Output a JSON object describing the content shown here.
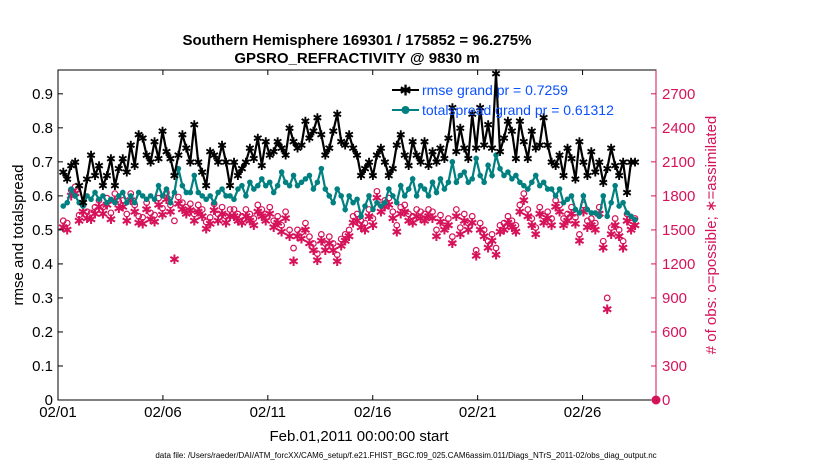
{
  "chart_data": {
    "type": "line",
    "title": "Southern Hemisphere 169301 / 175852 = 96.275%",
    "subtitle": "GPSRO_REFRACTIVITY @ 9830 m",
    "xlabel": "Feb.01,2011 00:00:00 start",
    "ylabel": "rmse and totalspread",
    "y2label": "# of obs: o=possible; ∗=assimilated",
    "footer": "data file: /Users/raeder/DAI/ATM_forcXX/CAM6_setup/f.e21.FHIST_BGC.f09_025.CAM6assim.011/Diags_NTrS_2011-02/obs_diag_output.nc",
    "xlim": [
      1,
      29.5
    ],
    "ylim": [
      0,
      0.97
    ],
    "y2lim": [
      0,
      2910
    ],
    "xticks": [
      1,
      6,
      11,
      16,
      21,
      26
    ],
    "xtick_labels": [
      "02/01",
      "02/06",
      "02/11",
      "02/16",
      "02/21",
      "02/26"
    ],
    "yticks": [
      0,
      0.1,
      0.2,
      0.3,
      0.4,
      0.5,
      0.6,
      0.7,
      0.8,
      0.9
    ],
    "ytick_labels": [
      "0",
      "0.1",
      "0.2",
      "0.3",
      "0.4",
      "0.5",
      "0.6",
      "0.7",
      "0.8",
      "0.9"
    ],
    "y2ticks": [
      0,
      300,
      600,
      900,
      1200,
      1500,
      1800,
      2100,
      2400,
      2700
    ],
    "y2tick_labels": [
      "0",
      "300",
      "600",
      "900",
      "1200",
      "1500",
      "1800",
      "2100",
      "2400",
      "2700"
    ],
    "legend_position": "top-right",
    "colors": {
      "rmse": "#000000",
      "spread": "#008080",
      "obs": "#d6135a"
    },
    "series": [
      {
        "name": "rmse grand pr = 0.7259",
        "axis": "left",
        "marker": "star",
        "values": [
          0.67,
          0.65,
          0.69,
          0.7,
          0.63,
          0.58,
          0.65,
          0.72,
          0.66,
          0.69,
          0.63,
          0.66,
          0.71,
          0.63,
          0.68,
          0.71,
          0.67,
          0.75,
          0.69,
          0.78,
          0.77,
          0.72,
          0.7,
          0.76,
          0.71,
          0.79,
          0.73,
          0.71,
          0.66,
          0.72,
          0.78,
          0.74,
          0.7,
          0.81,
          0.7,
          0.67,
          0.63,
          0.73,
          0.72,
          0.7,
          0.75,
          0.7,
          0.63,
          0.7,
          0.66,
          0.68,
          0.7,
          0.74,
          0.71,
          0.77,
          0.69,
          0.76,
          0.72,
          0.73,
          0.76,
          0.74,
          0.72,
          0.8,
          0.76,
          0.74,
          0.75,
          0.82,
          0.77,
          0.79,
          0.83,
          0.78,
          0.72,
          0.74,
          0.79,
          0.84,
          0.76,
          0.75,
          0.78,
          0.74,
          0.72,
          0.66,
          0.68,
          0.7,
          0.66,
          0.72,
          0.74,
          0.7,
          0.66,
          0.68,
          0.75,
          0.78,
          0.72,
          0.69,
          0.76,
          0.72,
          0.7,
          0.76,
          0.69,
          0.73,
          0.7,
          0.74,
          0.71,
          0.77,
          0.86,
          0.73,
          0.8,
          0.74,
          0.71,
          0.84,
          0.74,
          0.86,
          0.75,
          0.81,
          0.74,
          0.96,
          0.73,
          0.77,
          0.82,
          0.79,
          0.71,
          0.82,
          0.76,
          0.71,
          0.79,
          0.74,
          0.75,
          0.83,
          0.75,
          0.7,
          0.69,
          0.72,
          0.66,
          0.74,
          0.71,
          0.65,
          0.76,
          0.7,
          0.66,
          0.73,
          0.67,
          0.7,
          0.64,
          0.68,
          0.74,
          0.69,
          0.66,
          0.7,
          0.61,
          0.7,
          0.7
        ]
      },
      {
        "name": "totalspread grand pr = 0.61312",
        "axis": "left",
        "marker": "circle",
        "values": [
          0.57,
          0.58,
          0.62,
          0.6,
          0.58,
          0.57,
          0.6,
          0.59,
          0.61,
          0.59,
          0.6,
          0.58,
          0.59,
          0.58,
          0.6,
          0.61,
          0.58,
          0.6,
          0.58,
          0.61,
          0.6,
          0.59,
          0.6,
          0.59,
          0.63,
          0.6,
          0.62,
          0.58,
          0.61,
          0.68,
          0.63,
          0.61,
          0.61,
          0.66,
          0.61,
          0.6,
          0.59,
          0.6,
          0.58,
          0.61,
          0.62,
          0.6,
          0.6,
          0.59,
          0.62,
          0.63,
          0.6,
          0.64,
          0.62,
          0.63,
          0.65,
          0.63,
          0.64,
          0.61,
          0.63,
          0.67,
          0.64,
          0.63,
          0.66,
          0.63,
          0.64,
          0.65,
          0.66,
          0.62,
          0.64,
          0.68,
          0.62,
          0.6,
          0.58,
          0.62,
          0.6,
          0.56,
          0.6,
          0.58,
          0.59,
          0.54,
          0.57,
          0.6,
          0.56,
          0.58,
          0.57,
          0.58,
          0.62,
          0.6,
          0.58,
          0.63,
          0.6,
          0.62,
          0.65,
          0.6,
          0.63,
          0.62,
          0.6,
          0.64,
          0.61,
          0.65,
          0.62,
          0.64,
          0.7,
          0.64,
          0.66,
          0.67,
          0.64,
          0.65,
          0.71,
          0.66,
          0.64,
          0.69,
          0.66,
          0.72,
          0.68,
          0.66,
          0.67,
          0.65,
          0.66,
          0.64,
          0.63,
          0.62,
          0.64,
          0.66,
          0.63,
          0.64,
          0.62,
          0.62,
          0.6,
          0.62,
          0.58,
          0.59,
          0.6,
          0.56,
          0.55,
          0.6,
          0.56,
          0.55,
          0.55,
          0.54,
          0.6,
          0.54,
          0.58,
          0.63,
          0.57,
          0.58,
          0.55,
          0.54,
          0.53
        ]
      },
      {
        "name": "obs possible",
        "axis": "right",
        "marker": "open-circle",
        "values": [
          1580,
          1560,
          1850,
          1880,
          1630,
          1720,
          1660,
          1650,
          1700,
          1760,
          1700,
          1780,
          1650,
          1820,
          1750,
          1760,
          1640,
          1820,
          1720,
          1620,
          1610,
          1740,
          1650,
          1630,
          1780,
          1690,
          1830,
          1720,
          1580,
          1790,
          1740,
          1700,
          1730,
          1640,
          1720,
          1680,
          1570,
          1610,
          1730,
          1640,
          1700,
          1620,
          1680,
          1680,
          1640,
          1620,
          1680,
          1640,
          1600,
          1720,
          1680,
          1640,
          1700,
          1580,
          1620,
          1540,
          1660,
          1500,
          1340,
          1500,
          1480,
          1560,
          1440,
          1380,
          1290,
          1460,
          1380,
          1440,
          1380,
          1280,
          1420,
          1460,
          1500,
          1620,
          1640,
          1580,
          1560,
          1680,
          1600,
          1840,
          1720,
          1760,
          1780,
          1660,
          1540,
          1700,
          1720,
          1640,
          1620,
          1680,
          1660,
          1640,
          1680,
          1660,
          1500,
          1630,
          1560,
          1600,
          1440,
          1680,
          1520,
          1640,
          1560,
          1620,
          1320,
          1560,
          1500,
          1400,
          1460,
          1340,
          1540,
          1560,
          1620,
          1580,
          1540,
          1720,
          1820,
          1680,
          1600,
          1520,
          1700,
          1620,
          1660,
          1600,
          1760,
          1720,
          1600,
          1640,
          1700,
          1610,
          1460,
          1720,
          1580,
          1600,
          1560,
          1700,
          1400,
          900,
          1520,
          1600,
          1500,
          1400,
          1640,
          1560,
          1600
        ]
      },
      {
        "name": "obs assimilated",
        "axis": "right",
        "marker": "star",
        "values": [
          1520,
          1500,
          1800,
          1820,
          1580,
          1660,
          1600,
          1590,
          1640,
          1700,
          1640,
          1720,
          1590,
          1760,
          1690,
          1700,
          1580,
          1760,
          1660,
          1560,
          1550,
          1680,
          1590,
          1570,
          1720,
          1630,
          1770,
          1660,
          1240,
          1730,
          1680,
          1640,
          1670,
          1580,
          1660,
          1620,
          1510,
          1550,
          1670,
          1580,
          1640,
          1560,
          1620,
          1620,
          1580,
          1560,
          1620,
          1580,
          1540,
          1660,
          1620,
          1580,
          1640,
          1520,
          1560,
          1480,
          1600,
          1440,
          1220,
          1440,
          1420,
          1500,
          1380,
          1320,
          1230,
          1400,
          1320,
          1380,
          1320,
          1220,
          1360,
          1400,
          1440,
          1560,
          1580,
          1520,
          1500,
          1620,
          1540,
          1780,
          1660,
          1700,
          1720,
          1600,
          1480,
          1640,
          1660,
          1580,
          1560,
          1620,
          1600,
          1580,
          1620,
          1600,
          1440,
          1570,
          1500,
          1540,
          1380,
          1620,
          1460,
          1580,
          1500,
          1560,
          1270,
          1500,
          1440,
          1340,
          1400,
          1280,
          1480,
          1500,
          1560,
          1520,
          1480,
          1660,
          1760,
          1620,
          1540,
          1460,
          1640,
          1560,
          1600,
          1540,
          1700,
          1660,
          1540,
          1580,
          1640,
          1550,
          1400,
          1660,
          1520,
          1540,
          1500,
          1640,
          1340,
          800,
          1460,
          1540,
          1440,
          1340,
          1580,
          1500,
          1540
        ]
      }
    ],
    "end_marker": {
      "x": 29.5,
      "y2": 0,
      "label": "0"
    }
  }
}
